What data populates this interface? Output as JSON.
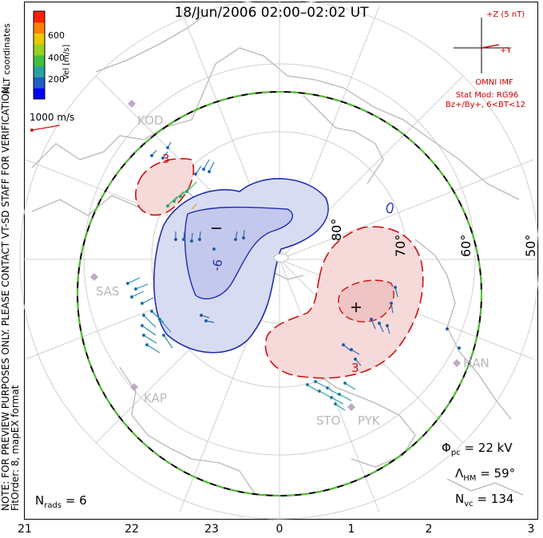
{
  "title": "18/Jun/2006 02:00–02:02 UT",
  "notice": "NOTE: FOR PREVIEW PURPOSES ONLY. PLEASE CONTACT VT-SD STAFF FOR VERIFICATION.",
  "fit_info": "FitOrder: 8, mapEX format",
  "coord_label": "MLT coordinates",
  "colorbar": {
    "label": "Vel [m/s]",
    "ticks": [
      "600",
      "400",
      "200"
    ],
    "colors": [
      "#0000ff",
      "#1f5fc8",
      "#2aa0a0",
      "#40c040",
      "#9ad020",
      "#e8c800",
      "#ff8000",
      "#ff2000"
    ]
  },
  "vector_scale": "1000 m/s",
  "imf": {
    "z_label": "+Z (5 nT)",
    "y_label": "+Y",
    "source": "OMNI IMF",
    "model": "Stat Mod: RG96",
    "condition": "Bz+/By+, 6<BT<12"
  },
  "latitude_labels": [
    "80°",
    "70°",
    "60°",
    "50°"
  ],
  "contour_labels": {
    "min": "-6",
    "max": "3",
    "max_top": "3"
  },
  "stations": [
    "KOD",
    "SAS",
    "KAP",
    "STO",
    "PYK",
    "HAN"
  ],
  "stats": {
    "phi_pc": {
      "symbol": "Φ",
      "sub": "pc",
      "value": "= 22 kV"
    },
    "lambda_hm": {
      "symbol": "Λ",
      "sub": "HM",
      "value": "= 59°"
    },
    "n_vc": {
      "symbol": "N",
      "sub": "vc",
      "value": "= 134"
    },
    "n_rads": {
      "symbol": "N",
      "sub": "rads",
      "value": "= 6"
    }
  },
  "mlt_ticks": [
    "21",
    "22",
    "23",
    "0",
    "1",
    "2",
    "3"
  ],
  "colors": {
    "negative_cell": "#1f2fb0",
    "positive_cell": "#d01010",
    "hmb": "#50c030",
    "grid": "#d0d0d0",
    "coast": "#b8b8b8"
  }
}
